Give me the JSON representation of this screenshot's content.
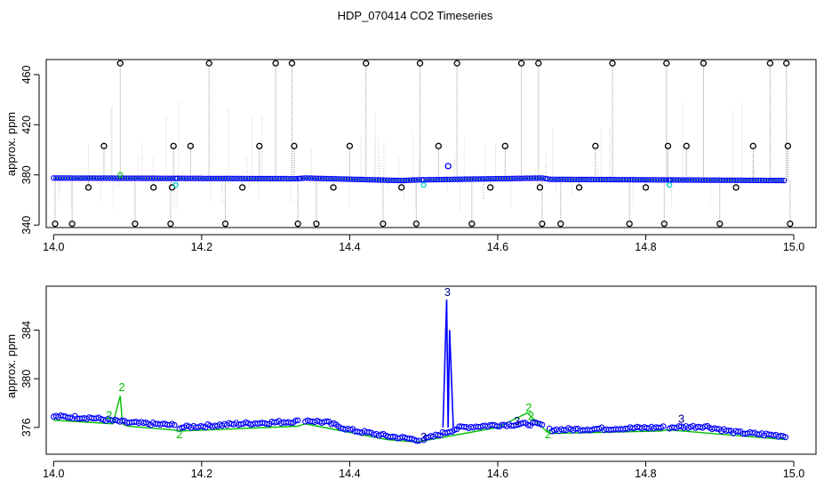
{
  "title": "HDP_070414  CO2 Timeseries",
  "colors": {
    "black": "#000000",
    "blue": "#0000ff",
    "green": "#00c000",
    "cyan": "#00cccc",
    "grey": "#9a9a9a"
  },
  "chart_data": [
    {
      "type": "scatter",
      "panel": "top",
      "ylabel": "approx. ppm",
      "xlim": [
        13.99,
        15.03
      ],
      "ylim": [
        338,
        472
      ],
      "xticks": [
        "14.0",
        "14.2",
        "14.4",
        "14.6",
        "14.8",
        "15.0"
      ],
      "yticks": [
        "340",
        "380",
        "420",
        "460"
      ],
      "baseline": {
        "x": [
          14.0,
          14.33,
          14.34,
          14.47,
          14.49,
          14.66,
          14.67,
          14.99
        ],
        "y": [
          377.5,
          377.0,
          377.5,
          375.5,
          376.0,
          377.5,
          376.5,
          375.5
        ]
      },
      "baseline_breaks": [
        14.167,
        14.333,
        14.5,
        14.667,
        14.833
      ],
      "series": [
        {
          "marker": "open-circle-black",
          "x": [
            14.002,
            14.025,
            14.047,
            14.068,
            14.09,
            14.11,
            14.135,
            14.158,
            14.16,
            14.162,
            14.185,
            14.21,
            14.232,
            14.255,
            14.278,
            14.3,
            14.322,
            14.325,
            14.33,
            14.355,
            14.378,
            14.4,
            14.422,
            14.445,
            14.47,
            14.49,
            14.495,
            14.52,
            14.545,
            14.565,
            14.59,
            14.61,
            14.632,
            14.655,
            14.657,
            14.66,
            14.685,
            14.71,
            14.732,
            14.755,
            14.778,
            14.8,
            14.825,
            14.828,
            14.83,
            14.855,
            14.878,
            14.9,
            14.922,
            14.945,
            14.968,
            14.99,
            14.992,
            14.995
          ],
          "y": [
            341,
            341,
            370,
            403,
            469,
            341,
            370,
            341,
            370,
            403,
            403,
            469,
            341,
            370,
            403,
            469,
            469,
            403,
            341,
            341,
            370,
            403,
            469,
            341,
            370,
            341,
            469,
            403,
            469,
            341,
            370,
            403,
            469,
            469,
            370,
            341,
            341,
            370,
            403,
            469,
            341,
            370,
            341,
            469,
            403,
            403,
            469,
            341,
            370,
            403,
            469,
            469,
            403,
            341
          ]
        },
        {
          "marker": "open-circle-blue",
          "x": [
            14.533
          ],
          "y": [
            387
          ]
        },
        {
          "marker": "label-2-green",
          "x": [
            14.09
          ],
          "y": [
            380
          ]
        },
        {
          "marker": "cyan",
          "x": [
            14.165,
            14.5,
            14.832
          ],
          "y": [
            372,
            372,
            372
          ]
        }
      ]
    },
    {
      "type": "scatter",
      "panel": "bottom",
      "ylabel": "approx. ppm",
      "xlim": [
        13.99,
        15.03
      ],
      "ylim": [
        373.8,
        387.6
      ],
      "xticks": [
        "14.0",
        "14.2",
        "14.4",
        "14.6",
        "14.8",
        "15.0"
      ],
      "yticks": [
        "376",
        "380",
        "384"
      ],
      "series": [
        {
          "name": "",
          "marker": "open-circle-blue",
          "x": [
            14.0,
            14.05,
            14.1,
            14.16,
            14.17,
            14.25,
            14.33,
            14.34,
            14.37,
            14.4,
            14.45,
            14.49,
            14.5,
            14.53,
            14.55,
            14.6,
            14.65,
            14.66,
            14.67,
            14.75,
            14.82,
            14.83,
            14.88,
            14.92,
            14.99
          ],
          "y": [
            376.9,
            376.8,
            376.4,
            376.2,
            376.0,
            376.3,
            376.5,
            376.6,
            376.4,
            375.8,
            375.3,
            375.0,
            375.0,
            375.6,
            376.0,
            376.2,
            376.3,
            376.2,
            375.8,
            375.9,
            376.0,
            376.0,
            376.1,
            375.6,
            375.3
          ]
        },
        {
          "name": "",
          "marker": "green-line",
          "x": [
            14.0,
            14.08,
            14.09,
            14.093,
            14.1,
            14.16,
            14.17,
            14.33,
            14.34,
            14.45,
            14.49,
            14.5,
            14.6,
            14.64,
            14.66,
            14.67,
            14.82,
            14.83,
            14.99
          ],
          "y": [
            376.6,
            376.3,
            378.6,
            376.3,
            376.1,
            375.8,
            375.7,
            376.1,
            376.3,
            375.0,
            374.8,
            374.9,
            376.0,
            377.2,
            376.0,
            375.5,
            375.7,
            375.8,
            375.0
          ]
        },
        {
          "name": "",
          "marker": "blue-spike",
          "x": [
            14.526,
            14.531,
            14.533,
            14.535,
            14.54
          ],
          "y": [
            376.0,
            386.5,
            376.0,
            384.0,
            376.0
          ]
        }
      ],
      "annotations": [
        {
          "text": "3",
          "x": 14.532,
          "y": 386.8,
          "color": "#00008b"
        },
        {
          "text": "2",
          "x": 14.092,
          "y": 379.0,
          "color": "#00c000"
        },
        {
          "text": "2",
          "x": 14.075,
          "y": 376.7,
          "color": "#00c000"
        },
        {
          "text": "2",
          "x": 14.642,
          "y": 377.3,
          "color": "#00c000"
        },
        {
          "text": "2",
          "x": 14.645,
          "y": 376.6,
          "color": "#00c000"
        },
        {
          "text": "2",
          "x": 14.668,
          "y": 375.1,
          "color": "#00c000"
        },
        {
          "text": "2",
          "x": 14.17,
          "y": 375.1,
          "color": "#00c000"
        },
        {
          "text": "3",
          "x": 14.626,
          "y": 376.2,
          "color": "#00008b"
        },
        {
          "text": "3",
          "x": 14.848,
          "y": 376.4,
          "color": "#00008b"
        },
        {
          "text": "3",
          "x": 14.5,
          "y": 374.9,
          "color": "#00008b"
        }
      ]
    }
  ]
}
